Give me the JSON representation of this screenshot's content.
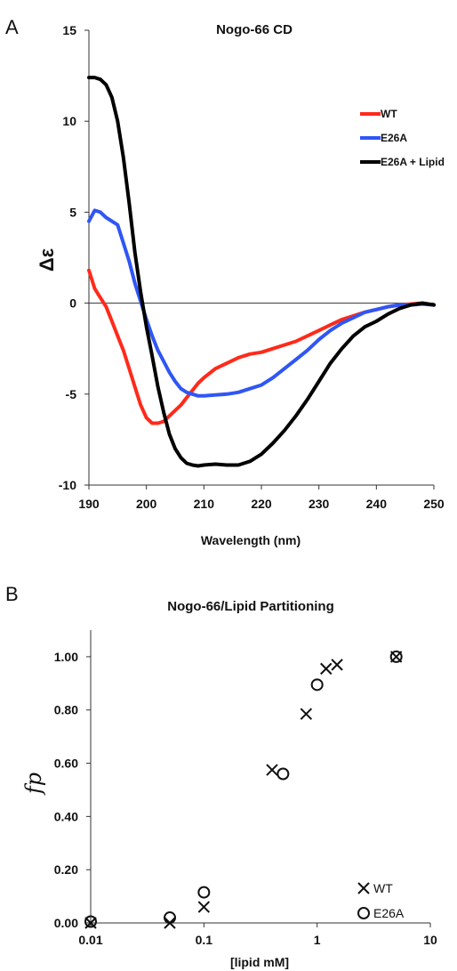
{
  "chart_data": [
    {
      "panel": "A",
      "type": "line",
      "title": "Nogo-66 CD",
      "xlabel": "Wavelength (nm)",
      "ylabel": "Δε",
      "xlim": [
        190,
        250
      ],
      "ylim": [
        -10,
        15
      ],
      "xticks": [
        190,
        200,
        210,
        220,
        230,
        240,
        250
      ],
      "yticks": [
        -10,
        -5,
        0,
        5,
        10,
        15
      ],
      "legend_position": "top-right",
      "series": [
        {
          "name": "WT",
          "color": "#ff2a1a",
          "x": [
            190,
            191,
            192,
            193,
            194,
            195,
            196,
            197,
            198,
            199,
            200,
            201,
            202,
            203,
            204,
            205,
            206,
            207,
            208,
            209,
            210,
            212,
            214,
            216,
            218,
            220,
            222,
            224,
            226,
            228,
            230,
            232,
            234,
            236,
            238,
            240,
            242,
            244,
            246,
            248,
            250
          ],
          "y": [
            1.8,
            0.8,
            0.3,
            -0.2,
            -1.0,
            -1.8,
            -2.6,
            -3.6,
            -4.6,
            -5.6,
            -6.3,
            -6.6,
            -6.6,
            -6.5,
            -6.2,
            -5.9,
            -5.6,
            -5.2,
            -4.8,
            -4.4,
            -4.1,
            -3.6,
            -3.3,
            -3.0,
            -2.8,
            -2.7,
            -2.5,
            -2.3,
            -2.1,
            -1.8,
            -1.5,
            -1.2,
            -0.9,
            -0.7,
            -0.5,
            -0.35,
            -0.2,
            -0.1,
            -0.05,
            0.0,
            -0.1
          ]
        },
        {
          "name": "E26A",
          "color": "#2f56f5",
          "x": [
            190,
            191,
            192,
            193,
            194,
            195,
            196,
            197,
            198,
            199,
            200,
            201,
            202,
            203,
            204,
            205,
            206,
            207,
            208,
            209,
            210,
            212,
            214,
            216,
            218,
            220,
            222,
            224,
            226,
            228,
            230,
            232,
            234,
            236,
            238,
            240,
            242,
            244,
            246,
            248,
            250
          ],
          "y": [
            4.5,
            5.1,
            5.0,
            4.7,
            4.5,
            4.3,
            3.3,
            2.3,
            1.1,
            0.1,
            -0.9,
            -1.8,
            -2.6,
            -3.2,
            -3.8,
            -4.3,
            -4.7,
            -4.9,
            -5.0,
            -5.1,
            -5.1,
            -5.05,
            -5.0,
            -4.9,
            -4.7,
            -4.5,
            -4.1,
            -3.6,
            -3.1,
            -2.6,
            -2.0,
            -1.5,
            -1.1,
            -0.8,
            -0.5,
            -0.35,
            -0.2,
            -0.1,
            -0.1,
            -0.05,
            -0.1
          ]
        },
        {
          "name": "E26A + Lipid",
          "color": "#000000",
          "x": [
            190,
            191,
            192,
            193,
            194,
            195,
            196,
            197,
            198,
            199,
            200,
            201,
            202,
            203,
            204,
            205,
            206,
            207,
            208,
            209,
            210,
            212,
            214,
            216,
            218,
            220,
            222,
            224,
            226,
            228,
            230,
            232,
            234,
            236,
            238,
            240,
            242,
            244,
            246,
            248,
            250
          ],
          "y": [
            12.4,
            12.4,
            12.3,
            12.0,
            11.3,
            10.0,
            8.0,
            5.5,
            2.8,
            0.6,
            -1.3,
            -2.9,
            -4.6,
            -6.0,
            -7.2,
            -8.0,
            -8.5,
            -8.8,
            -8.9,
            -8.95,
            -8.9,
            -8.85,
            -8.9,
            -8.9,
            -8.7,
            -8.3,
            -7.7,
            -7.0,
            -6.2,
            -5.3,
            -4.3,
            -3.3,
            -2.5,
            -1.8,
            -1.3,
            -1.0,
            -0.6,
            -0.3,
            -0.1,
            0.0,
            -0.1
          ]
        }
      ]
    },
    {
      "panel": "B",
      "type": "scatter",
      "title": "Nogo-66/Lipid Partitioning",
      "xlabel": "[lipid mM]",
      "ylabel": "fp",
      "xscale": "log",
      "xlim": [
        0.01,
        10
      ],
      "ylim": [
        0,
        1.1
      ],
      "xticks": [
        0.01,
        0.1,
        1,
        10
      ],
      "xtick_labels": [
        "0.01",
        "0.1",
        "1",
        "10"
      ],
      "yticks": [
        0,
        0.2,
        0.4,
        0.6,
        0.8,
        1.0
      ],
      "ytick_labels": [
        "0.00",
        "0.20",
        "0.40",
        "0.60",
        "0.80",
        "1.00"
      ],
      "legend_position": "bottom-right",
      "series": [
        {
          "name": "WT",
          "marker": "x",
          "x": [
            0.01,
            0.05,
            0.1,
            0.4,
            0.8,
            1.2,
            1.5,
            5.0
          ],
          "y": [
            0.0,
            0.0,
            0.06,
            0.575,
            0.785,
            0.955,
            0.97,
            1.0
          ]
        },
        {
          "name": "E26A",
          "marker": "circle",
          "x": [
            0.01,
            0.05,
            0.1,
            0.5,
            1.0,
            5.0
          ],
          "y": [
            0.005,
            0.02,
            0.115,
            0.56,
            0.895,
            1.0
          ]
        }
      ]
    }
  ]
}
